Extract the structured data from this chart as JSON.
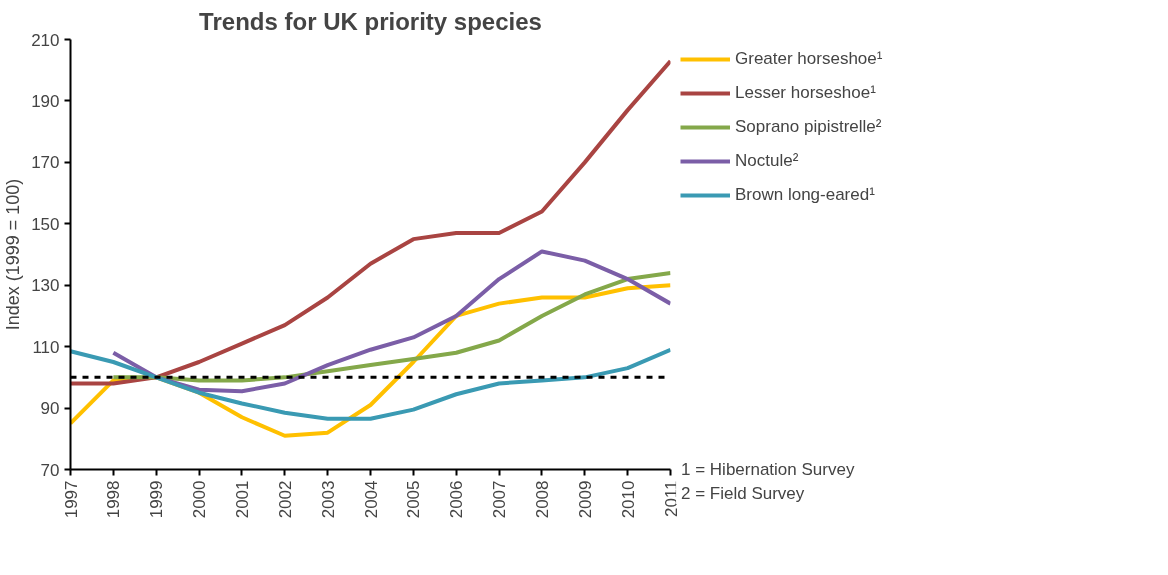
{
  "chart_data": {
    "type": "line",
    "title": "Trends for UK priority species",
    "ylabel": "Index (1999 = 100)",
    "x": [
      1997,
      1998,
      1999,
      2000,
      2001,
      2002,
      2003,
      2004,
      2005,
      2006,
      2007,
      2008,
      2009,
      2010,
      2011
    ],
    "xlim": [
      1997,
      2011
    ],
    "xticks": [
      1997,
      1998,
      1999,
      2000,
      2001,
      2002,
      2003,
      2004,
      2005,
      2006,
      2007,
      2008,
      2009,
      2010,
      2011
    ],
    "ylim": [
      70,
      210
    ],
    "yticks": [
      70,
      90,
      110,
      130,
      150,
      170,
      190,
      210
    ],
    "series": [
      {
        "name": "Greater horseshoe¹",
        "color": "#ffc000",
        "values": [
          85,
          99,
          100,
          95,
          87,
          81,
          82,
          91,
          105,
          120,
          124,
          126,
          126,
          129,
          130
        ]
      },
      {
        "name": "Lesser horseshoe¹",
        "color": "#a94442",
        "values": [
          98,
          98,
          100,
          105,
          111,
          117,
          126,
          137,
          145,
          147,
          147,
          154,
          170,
          187,
          203
        ]
      },
      {
        "name": "Soprano pipistrelle²",
        "color": "#84a84a",
        "values": [
          null,
          100,
          100,
          99,
          99,
          100,
          102,
          104,
          106,
          108,
          112,
          120,
          127,
          132,
          134
        ]
      },
      {
        "name": "Noctule²",
        "color": "#7b5ea7",
        "values": [
          null,
          108,
          100,
          96,
          95.5,
          98,
          104,
          109,
          113,
          120,
          132,
          141,
          138,
          132,
          124
        ]
      },
      {
        "name": "Brown long-eared¹",
        "color": "#3a9ab3",
        "values": [
          108.5,
          105,
          100,
          95,
          91.5,
          88.5,
          86.5,
          86.5,
          89.5,
          94.5,
          98,
          99,
          100,
          103,
          109
        ]
      }
    ],
    "ref_lines": [
      {
        "axis": "y",
        "value": 100,
        "color": "#000000",
        "line_style": "dashed"
      }
    ],
    "annotations": [
      "1 = Hibernation Survey",
      "2 = Field Survey"
    ],
    "legend": "right",
    "grid": false,
    "marker": "none",
    "line_style": "solid"
  }
}
